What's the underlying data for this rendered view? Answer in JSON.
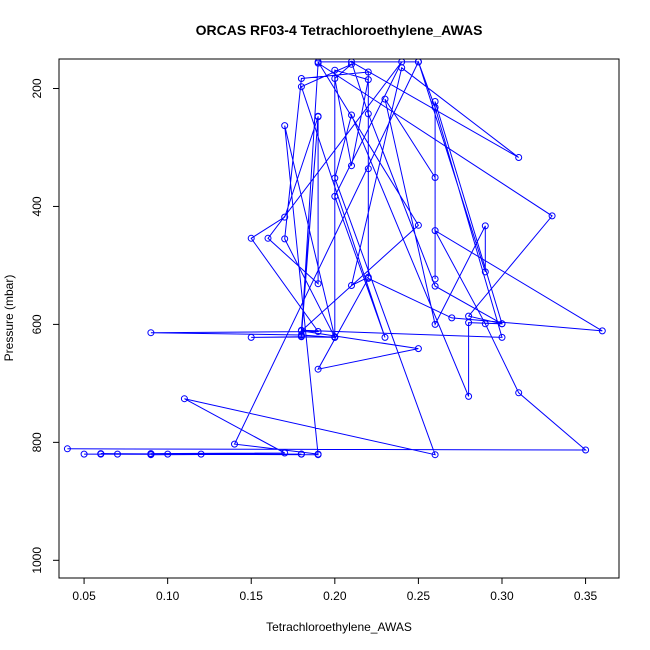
{
  "chart_data": {
    "type": "line",
    "title": "ORCAS RF03-4 Tetrachloroethylene_AWAS",
    "xlabel": "Tetrachloroethylene_AWAS",
    "ylabel": "Pressure (mbar)",
    "xlim": [
      0.035,
      0.37
    ],
    "ylim": [
      1030,
      150
    ],
    "y_axis_reversed": true,
    "grid": false,
    "x_ticks": [
      0.05,
      0.1,
      0.15,
      0.2,
      0.25,
      0.3,
      0.35
    ],
    "x_tick_labels": [
      "0.05",
      "0.10",
      "0.15",
      "0.20",
      "0.25",
      "0.30",
      "0.35"
    ],
    "y_ticks": [
      200,
      400,
      600,
      800,
      1000
    ],
    "y_tick_labels": [
      "200",
      "400",
      "600",
      "800",
      "1000"
    ],
    "series": [
      {
        "color": "#0000ff",
        "marker": "open-circle",
        "points": [
          [
            0.04,
            811
          ],
          [
            0.35,
            813
          ],
          [
            0.31,
            716
          ],
          [
            0.29,
            599
          ],
          [
            0.26,
            441
          ],
          [
            0.36,
            611
          ],
          [
            0.27,
            589
          ],
          [
            0.22,
            522
          ],
          [
            0.19,
            676
          ],
          [
            0.25,
            641
          ],
          [
            0.18,
            611
          ],
          [
            0.25,
            432
          ],
          [
            0.19,
            155
          ],
          [
            0.25,
            155
          ],
          [
            0.26,
            232
          ],
          [
            0.3,
            622
          ],
          [
            0.18,
            610
          ],
          [
            0.19,
            248
          ],
          [
            0.17,
            418
          ],
          [
            0.15,
            454
          ],
          [
            0.19,
            612
          ],
          [
            0.09,
            614
          ],
          [
            0.18,
            618
          ],
          [
            0.2,
            622
          ],
          [
            0.17,
            455
          ],
          [
            0.18,
            183
          ],
          [
            0.22,
            172
          ],
          [
            0.22,
            336
          ],
          [
            0.22,
            520
          ],
          [
            0.21,
            534
          ],
          [
            0.24,
            165
          ],
          [
            0.31,
            317
          ],
          [
            0.21,
            155
          ],
          [
            0.22,
            243
          ],
          [
            0.26,
            535
          ],
          [
            0.3,
            599
          ],
          [
            0.28,
            586
          ],
          [
            0.33,
            416
          ],
          [
            0.19,
            157
          ],
          [
            0.18,
            620
          ],
          [
            0.19,
            247
          ],
          [
            0.19,
            531
          ],
          [
            0.16,
            454
          ],
          [
            0.24,
            155
          ],
          [
            0.2,
            383
          ],
          [
            0.23,
            622
          ],
          [
            0.18,
            197
          ],
          [
            0.21,
            159
          ],
          [
            0.2,
            183
          ],
          [
            0.21,
            331
          ],
          [
            0.22,
            185
          ],
          [
            0.2,
            169
          ],
          [
            0.2,
            621
          ],
          [
            0.15,
            622
          ],
          [
            0.18,
            621
          ],
          [
            0.2,
            622
          ],
          [
            0.17,
            263
          ],
          [
            0.19,
            821
          ],
          [
            0.05,
            820
          ],
          [
            0.18,
            820
          ],
          [
            0.07,
            820
          ],
          [
            0.06,
            820
          ],
          [
            0.09,
            820
          ],
          [
            0.06,
            819
          ],
          [
            0.12,
            820
          ],
          [
            0.09,
            821
          ],
          [
            0.18,
            820
          ],
          [
            0.1,
            820
          ],
          [
            0.09,
            819
          ],
          [
            0.17,
            818
          ],
          [
            0.11,
            726
          ],
          [
            0.26,
            821
          ],
          [
            0.2,
            352
          ],
          [
            0.21,
            245
          ],
          [
            0.28,
            722
          ],
          [
            0.28,
            597
          ],
          [
            0.3,
            599
          ],
          [
            0.26,
            222
          ],
          [
            0.26,
            523
          ],
          [
            0.26,
            351
          ],
          [
            0.23,
            218
          ],
          [
            0.26,
            600
          ],
          [
            0.29,
            433
          ],
          [
            0.29,
            511
          ],
          [
            0.25,
            155
          ],
          [
            0.14,
            803
          ],
          [
            0.19,
            820
          ]
        ]
      }
    ]
  }
}
